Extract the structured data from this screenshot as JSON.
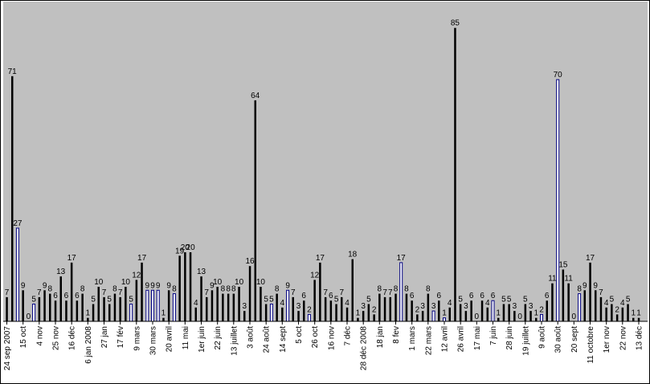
{
  "chart_data": {
    "type": "bar",
    "title": "",
    "xlabel": "",
    "ylabel": "",
    "ylim": [
      0,
      88
    ],
    "grid": false,
    "legend": "none",
    "colors": {
      "plot_bg": "#c0c0c0",
      "bar_default": "#000000",
      "bar_highlight": "#000080",
      "bar_highlight_fill": "#ffffff"
    },
    "values": [
      7,
      71,
      27,
      9,
      0,
      5,
      7,
      9,
      8,
      6,
      13,
      6,
      17,
      6,
      8,
      1,
      5,
      10,
      7,
      5,
      8,
      7,
      10,
      5,
      12,
      17,
      9,
      9,
      9,
      1,
      9,
      8,
      19,
      20,
      20,
      4,
      13,
      7,
      9,
      10,
      8,
      8,
      8,
      10,
      3,
      16,
      64,
      10,
      5,
      5,
      8,
      4,
      9,
      7,
      3,
      6,
      2,
      12,
      17,
      7,
      6,
      5,
      7,
      4,
      18,
      1,
      3,
      5,
      2,
      8,
      7,
      7,
      8,
      17,
      8,
      6,
      2,
      3,
      8,
      3,
      6,
      1,
      4,
      85,
      5,
      3,
      6,
      0,
      6,
      4,
      6,
      1,
      5,
      5,
      3,
      0,
      5,
      3,
      1,
      2,
      6,
      11,
      70,
      15,
      11,
      0,
      8,
      9,
      17,
      9,
      7,
      4,
      5,
      2,
      4,
      5,
      1,
      1
    ],
    "highlight_indices": [
      2,
      5,
      23,
      26,
      27,
      28,
      31,
      49,
      52,
      56,
      73,
      79,
      81,
      90,
      99,
      102,
      106
    ],
    "tick_labels": [
      {
        "index": 0,
        "label": "24 sep 2007"
      },
      {
        "index": 3,
        "label": "15 oct"
      },
      {
        "index": 6,
        "label": "4 nov"
      },
      {
        "index": 9,
        "label": "25 nov"
      },
      {
        "index": 12,
        "label": "16 déc"
      },
      {
        "index": 15,
        "label": "6 jan 2008"
      },
      {
        "index": 18,
        "label": "27 jan"
      },
      {
        "index": 21,
        "label": "17 fév"
      },
      {
        "index": 24,
        "label": "9 mars"
      },
      {
        "index": 27,
        "label": "30 mars"
      },
      {
        "index": 30,
        "label": "20 avril"
      },
      {
        "index": 33,
        "label": "11 mai"
      },
      {
        "index": 36,
        "label": "1er juin"
      },
      {
        "index": 39,
        "label": "22 juin"
      },
      {
        "index": 42,
        "label": "13 juillet"
      },
      {
        "index": 45,
        "label": "3 août"
      },
      {
        "index": 48,
        "label": "24 août"
      },
      {
        "index": 51,
        "label": "14 sept"
      },
      {
        "index": 54,
        "label": "5 oct"
      },
      {
        "index": 57,
        "label": "26 oct"
      },
      {
        "index": 60,
        "label": "16 nov"
      },
      {
        "index": 63,
        "label": "7 déc"
      },
      {
        "index": 66,
        "label": "28 déc 2008"
      },
      {
        "index": 69,
        "label": "18 jan"
      },
      {
        "index": 72,
        "label": "8 fev"
      },
      {
        "index": 75,
        "label": "1 mars"
      },
      {
        "index": 78,
        "label": "22 mars"
      },
      {
        "index": 81,
        "label": "12 avril"
      },
      {
        "index": 84,
        "label": "26 avril"
      },
      {
        "index": 87,
        "label": "17 mai"
      },
      {
        "index": 90,
        "label": "7 juin"
      },
      {
        "index": 93,
        "label": "28 juin"
      },
      {
        "index": 96,
        "label": "19 juillet"
      },
      {
        "index": 99,
        "label": "9 août"
      },
      {
        "index": 102,
        "label": "30 août"
      },
      {
        "index": 105,
        "label": "20 sept"
      },
      {
        "index": 108,
        "label": "11 octobre"
      },
      {
        "index": 111,
        "label": "1er nov"
      },
      {
        "index": 114,
        "label": "22 nov"
      },
      {
        "index": 117,
        "label": "13 déc"
      }
    ]
  }
}
